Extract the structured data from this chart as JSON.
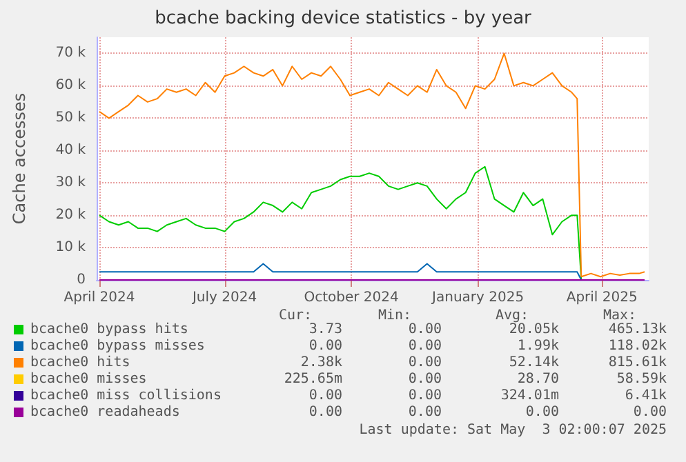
{
  "chart_data": {
    "type": "line",
    "title": "bcache backing device statistics - by year",
    "ylabel": "Cache accesses",
    "x": [
      "2024-04-01",
      "2024-04-08",
      "2024-04-15",
      "2024-04-22",
      "2024-04-29",
      "2024-05-06",
      "2024-05-13",
      "2024-05-20",
      "2024-05-27",
      "2024-06-03",
      "2024-06-10",
      "2024-06-17",
      "2024-06-24",
      "2024-07-01",
      "2024-07-08",
      "2024-07-15",
      "2024-07-22",
      "2024-07-29",
      "2024-08-05",
      "2024-08-12",
      "2024-08-19",
      "2024-08-26",
      "2024-09-02",
      "2024-09-09",
      "2024-09-16",
      "2024-09-23",
      "2024-09-30",
      "2024-10-07",
      "2024-10-14",
      "2024-10-21",
      "2024-10-28",
      "2024-11-04",
      "2024-11-11",
      "2024-11-18",
      "2024-11-25",
      "2024-12-02",
      "2024-12-09",
      "2024-12-16",
      "2024-12-23",
      "2024-12-30",
      "2025-01-06",
      "2025-01-13",
      "2025-01-20",
      "2025-01-27",
      "2025-02-03",
      "2025-02-10",
      "2025-02-17",
      "2025-02-24",
      "2025-03-03",
      "2025-03-10",
      "2025-03-14",
      "2025-03-17",
      "2025-03-24",
      "2025-03-31",
      "2025-04-07",
      "2025-04-14",
      "2025-04-21",
      "2025-04-28",
      "2025-05-02"
    ],
    "series": [
      {
        "name": "bcache0 bypass hits",
        "color": "#00cc00",
        "values": [
          20000,
          18000,
          17000,
          18000,
          16000,
          16000,
          15000,
          17000,
          18000,
          19000,
          17000,
          16000,
          16000,
          15000,
          18000,
          19000,
          21000,
          24000,
          23000,
          21000,
          24000,
          22000,
          27000,
          28000,
          29000,
          31000,
          32000,
          32000,
          33000,
          32000,
          29000,
          28000,
          29000,
          30000,
          29000,
          25000,
          22000,
          25000,
          27000,
          33000,
          35000,
          25000,
          23000,
          21000,
          27000,
          23000,
          25000,
          14000,
          18000,
          20000,
          20000,
          0,
          null,
          null,
          null,
          null,
          null,
          null,
          null
        ]
      },
      {
        "name": "bcache0 bypass misses",
        "color": "#0066b3",
        "values": [
          2500,
          2500,
          2500,
          2500,
          2500,
          2500,
          2500,
          2500,
          2500,
          2500,
          2500,
          2500,
          2500,
          2500,
          2500,
          2500,
          2500,
          5000,
          2500,
          2500,
          2500,
          2500,
          2500,
          2500,
          2500,
          2500,
          2500,
          2500,
          2500,
          2500,
          2500,
          2500,
          2500,
          2500,
          5000,
          2500,
          2500,
          2500,
          2500,
          2500,
          2500,
          2500,
          2500,
          2500,
          2500,
          2500,
          2500,
          2500,
          2500,
          2500,
          2500,
          0,
          null,
          null,
          null,
          null,
          null,
          null,
          null
        ]
      },
      {
        "name": "bcache0 hits",
        "color": "#ff8000",
        "values": [
          52000,
          50000,
          52000,
          54000,
          57000,
          55000,
          56000,
          59000,
          58000,
          59000,
          57000,
          61000,
          58000,
          63000,
          64000,
          66000,
          64000,
          63000,
          65000,
          60000,
          66000,
          62000,
          64000,
          63000,
          66000,
          62000,
          57000,
          58000,
          59000,
          57000,
          61000,
          59000,
          57000,
          60000,
          58000,
          65000,
          60000,
          58000,
          53000,
          60000,
          59000,
          62000,
          70000,
          60000,
          61000,
          60000,
          62000,
          64000,
          60000,
          58000,
          56000,
          1000,
          2000,
          1000,
          2000,
          1500,
          2000,
          2000,
          2500
        ]
      },
      {
        "name": "bcache0 misses",
        "color": "#ffcc00",
        "values": [
          null,
          null,
          null,
          null,
          null,
          null,
          null,
          null,
          null,
          null,
          null,
          null,
          null,
          null,
          null,
          null,
          null,
          null,
          null,
          null,
          null,
          null,
          null,
          null,
          null,
          null,
          null,
          null,
          null,
          null,
          null,
          null,
          null,
          null,
          null,
          null,
          null,
          null,
          null,
          null,
          null,
          null,
          null,
          null,
          null,
          null,
          null,
          null,
          null,
          null,
          null,
          null,
          null,
          null,
          null,
          null,
          null,
          null,
          null
        ]
      },
      {
        "name": "bcache0 miss collisions",
        "color": "#330099",
        "values": [
          null,
          null,
          null,
          null,
          null,
          null,
          null,
          null,
          null,
          null,
          null,
          null,
          null,
          null,
          null,
          null,
          null,
          null,
          null,
          null,
          null,
          null,
          null,
          null,
          null,
          null,
          null,
          null,
          null,
          null,
          null,
          null,
          null,
          null,
          null,
          null,
          null,
          null,
          null,
          null,
          null,
          null,
          null,
          null,
          null,
          null,
          null,
          null,
          null,
          null,
          null,
          null,
          null,
          null,
          null,
          null,
          null,
          null,
          null
        ]
      },
      {
        "name": "bcache0 readaheads",
        "color": "#990099",
        "values": [
          0,
          0,
          0,
          0,
          0,
          0,
          0,
          0,
          0,
          0,
          0,
          0,
          0,
          0,
          0,
          0,
          0,
          0,
          0,
          0,
          0,
          0,
          0,
          0,
          0,
          0,
          0,
          0,
          0,
          0,
          0,
          0,
          0,
          0,
          0,
          0,
          0,
          0,
          0,
          0,
          0,
          0,
          0,
          0,
          0,
          0,
          0,
          0,
          0,
          0,
          0,
          0,
          0,
          0,
          0,
          0,
          0,
          0,
          0
        ]
      }
    ],
    "xlim": [
      "2024-03-30",
      "2025-05-05"
    ],
    "xticks": [
      {
        "value": "2024-04-01",
        "label": "April 2024"
      },
      {
        "value": "2024-07-01",
        "label": "July 2024"
      },
      {
        "value": "2024-10-01",
        "label": "October 2024"
      },
      {
        "value": "2025-01-01",
        "label": "January 2025"
      },
      {
        "value": "2025-04-01",
        "label": "April 2025"
      }
    ],
    "ylim": [
      0,
      75000
    ],
    "yticks": [
      0,
      {
        "value": 10000,
        "label": "10 k"
      },
      {
        "value": 20000,
        "label": "20 k"
      },
      {
        "value": 30000,
        "label": "30 k"
      },
      {
        "value": 40000,
        "label": "40 k"
      },
      {
        "value": 50000,
        "label": "50 k"
      },
      {
        "value": 60000,
        "label": "60 k"
      },
      {
        "value": 70000,
        "label": "70 k"
      }
    ],
    "grid": true,
    "legend": "bottom",
    "marker": "none",
    "line_style": "solid",
    "annotations": [
      "Cur:",
      "Min:",
      "Avg:",
      "Max:",
      "3.73",
      "0.00",
      "20.05k",
      "465.13k",
      "0.00",
      "0.00",
      "1.99k",
      "118.02k",
      "2.38k",
      "0.00",
      "52.14k",
      "815.61k",
      "225.65m",
      "0.00",
      "28.70",
      "58.59k",
      "0.00",
      "0.00",
      "324.01m",
      "6.41k",
      "0.00",
      "0.00",
      "0.00",
      "0.00",
      "Last update: Sat May  3 02:00:07 2025"
    ]
  }
}
